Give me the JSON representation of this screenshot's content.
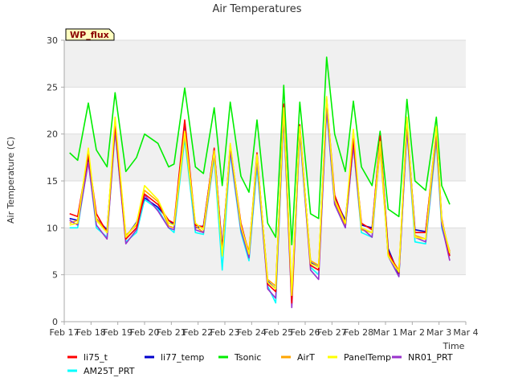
{
  "chart_data": {
    "type": "line",
    "title": "Air Temperatures",
    "xlabel": "Time",
    "ylabel": "Air Temperature (C)",
    "badge": "WP_flux",
    "ylim": [
      0,
      30
    ],
    "yticks": [
      "0",
      "5",
      "10",
      "15",
      "20",
      "25",
      "30"
    ],
    "xlim": [
      0,
      15
    ],
    "xticks": [
      "Feb 17",
      "Feb 18",
      "Feb 19",
      "Feb 20",
      "Feb 21",
      "Feb 22",
      "Feb 23",
      "Feb 24",
      "Feb 25",
      "Feb 26",
      "Feb 27",
      "Feb 28",
      "Mar 1",
      "Mar 2",
      "Mar 3",
      "Mar 4"
    ],
    "grid": "horizontal bands",
    "legend_position": "bottom",
    "x": [
      0.2,
      0.5,
      0.9,
      1.2,
      1.6,
      1.9,
      2.3,
      2.7,
      3.0,
      3.5,
      3.9,
      4.1,
      4.5,
      4.9,
      5.2,
      5.6,
      5.9,
      6.2,
      6.6,
      6.9,
      7.2,
      7.6,
      7.9,
      8.2,
      8.5,
      8.8,
      9.2,
      9.5,
      9.8,
      10.1,
      10.5,
      10.8,
      11.1,
      11.5,
      11.8,
      12.1,
      12.5,
      12.8,
      13.1,
      13.5,
      13.9,
      14.1,
      14.4
    ],
    "series": [
      {
        "name": "li75_t",
        "color": "#ff0000",
        "values": [
          11.5,
          11.2,
          17.8,
          11.5,
          9.5,
          21.0,
          8.8,
          10.0,
          13.6,
          12.5,
          10.8,
          10.5,
          21.5,
          10.3,
          10.1,
          18.5,
          7.5,
          18.8,
          10.5,
          7.2,
          18.0,
          4.0,
          3.2,
          23.2,
          2.0,
          21.0,
          6.0,
          5.5,
          23.8,
          13.5,
          10.5,
          19.5,
          10.5,
          9.8,
          19.8,
          7.5,
          5.2,
          21.5,
          9.5,
          9.5,
          20.5,
          11.0,
          7.0
        ]
      },
      {
        "name": "li77_temp",
        "color": "#0000cc",
        "values": [
          11.0,
          10.8,
          17.5,
          11.0,
          9.8,
          20.8,
          9.0,
          10.6,
          13.2,
          12.2,
          10.8,
          10.3,
          21.2,
          10.0,
          10.2,
          18.3,
          7.8,
          18.5,
          10.3,
          7.0,
          17.5,
          4.3,
          3.5,
          22.5,
          2.3,
          20.5,
          6.3,
          5.8,
          23.2,
          13.2,
          10.8,
          19.2,
          10.3,
          10.0,
          19.5,
          7.8,
          5.0,
          21.0,
          9.8,
          9.6,
          20.0,
          10.8,
          7.3
        ]
      },
      {
        "name": "Tsonic",
        "color": "#00ee00",
        "values": [
          18.0,
          17.2,
          23.3,
          18.3,
          16.5,
          24.4,
          16.0,
          17.5,
          20.0,
          19.0,
          16.5,
          16.8,
          24.9,
          16.5,
          15.8,
          22.8,
          14.5,
          23.4,
          15.5,
          13.8,
          21.5,
          10.5,
          9.0,
          25.2,
          8.2,
          23.4,
          11.5,
          11.0,
          28.2,
          20.0,
          16.0,
          23.5,
          16.5,
          14.5,
          20.3,
          12.0,
          11.2,
          23.7,
          15.0,
          14.0,
          21.8,
          14.5,
          12.5
        ]
      },
      {
        "name": "AirT",
        "color": "#ffa500",
        "values": [
          10.5,
          10.8,
          18.0,
          11.0,
          9.6,
          21.3,
          9.2,
          10.3,
          14.0,
          12.8,
          10.2,
          10.0,
          20.0,
          10.2,
          9.5,
          17.8,
          7.2,
          18.5,
          10.0,
          7.5,
          17.3,
          4.5,
          3.8,
          22.3,
          3.0,
          20.2,
          6.5,
          6.0,
          23.0,
          12.8,
          10.2,
          19.0,
          9.8,
          9.5,
          18.5,
          7.2,
          5.5,
          20.8,
          9.2,
          8.8,
          19.6,
          10.5,
          7.5
        ]
      },
      {
        "name": "PanelTemp",
        "color": "#ffff00",
        "values": [
          10.3,
          10.5,
          18.5,
          10.8,
          9.5,
          21.8,
          9.0,
          10.5,
          14.5,
          13.0,
          10.5,
          10.3,
          20.3,
          10.5,
          9.8,
          18.2,
          7.0,
          19.0,
          10.2,
          7.2,
          17.8,
          4.2,
          3.5,
          22.8,
          2.8,
          20.8,
          6.2,
          5.8,
          24.0,
          13.0,
          10.5,
          20.5,
          10.0,
          9.5,
          19.2,
          7.0,
          5.3,
          21.8,
          9.0,
          8.8,
          20.8,
          10.8,
          7.3
        ]
      },
      {
        "name": "NR01_PRT",
        "color": "#9932cc",
        "values": [
          10.8,
          10.3,
          17.0,
          10.3,
          8.8,
          20.5,
          8.3,
          9.8,
          13.5,
          11.8,
          10.0,
          9.8,
          21.3,
          9.8,
          9.5,
          18.0,
          7.2,
          18.3,
          9.8,
          6.8,
          17.2,
          3.5,
          2.5,
          22.0,
          1.5,
          20.3,
          5.5,
          4.5,
          22.8,
          12.5,
          10.0,
          18.8,
          10.0,
          9.0,
          19.5,
          7.0,
          4.8,
          20.6,
          9.0,
          8.5,
          20.0,
          10.3,
          6.5
        ]
      },
      {
        "name": "AM25T_PRT",
        "color": "#00ffff",
        "values": [
          10.0,
          10.0,
          17.2,
          10.0,
          9.0,
          20.3,
          8.5,
          9.5,
          13.0,
          12.0,
          10.0,
          9.5,
          19.5,
          9.5,
          9.3,
          17.5,
          5.5,
          18.0,
          9.5,
          6.5,
          16.5,
          3.8,
          2.0,
          22.0,
          2.0,
          20.0,
          5.8,
          5.0,
          22.5,
          12.5,
          10.0,
          18.8,
          9.5,
          9.0,
          18.8,
          7.0,
          4.8,
          20.5,
          8.5,
          8.3,
          19.3,
          10.0,
          7.0
        ]
      }
    ]
  }
}
